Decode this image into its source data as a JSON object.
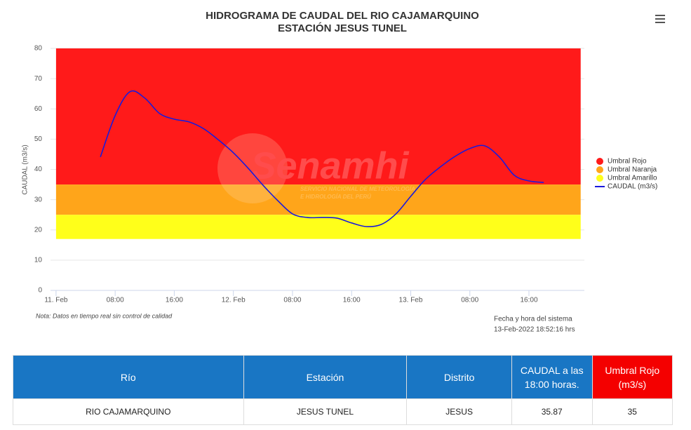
{
  "chart_data": {
    "type": "line",
    "title": "HIDROGRAMA DE CAUDAL DEL RIO CAJAMARQUINO",
    "subtitle": "ESTACIÓN JESUS TUNEL",
    "y_label": "CAUDAL (m3/s)",
    "watermark": [
      "Senamhi",
      "SERVICIO NACIONAL DE METEOROLOGÍA",
      "E HIDROLOGÍA DEL PERÚ"
    ],
    "note": "Nota: Datos en tiempo real sin control de calidad",
    "system_time": [
      "Fecha y hora del sistema",
      "13-Feb-2022 18:52:16 hrs"
    ],
    "xlim": [
      -0.75,
      71.5
    ],
    "ylim": [
      0,
      80
    ],
    "yticks": [
      0,
      10,
      20,
      30,
      40,
      50,
      60,
      70,
      80
    ],
    "xticks": [
      {
        "value": 0,
        "label": "11. Feb"
      },
      {
        "value": 8,
        "label": "08:00"
      },
      {
        "value": 16,
        "label": "16:00"
      },
      {
        "value": 24,
        "label": "12. Feb"
      },
      {
        "value": 32,
        "label": "08:00"
      },
      {
        "value": 40,
        "label": "16:00"
      },
      {
        "value": 48,
        "label": "13. Feb"
      },
      {
        "value": 56,
        "label": "08:00"
      },
      {
        "value": 64,
        "label": "16:00"
      }
    ],
    "grid": true,
    "legend": "right",
    "bands": [
      {
        "name": "Umbral Rojo",
        "color": "#ff1a1a",
        "low": 35,
        "high": 80,
        "x": [
          0,
          71
        ]
      },
      {
        "name": "Umbral Naranja",
        "color": "#ffa51a",
        "low": 25,
        "high": 35,
        "x": [
          0,
          71
        ]
      },
      {
        "name": "Umbral Amarillo",
        "color": "#ffff1a",
        "low": 17,
        "high": 25,
        "x": [
          0,
          71
        ]
      }
    ],
    "x": [
      6,
      8,
      10,
      12,
      14,
      16,
      18,
      20,
      22,
      24,
      26,
      28,
      30,
      32,
      34,
      36,
      38,
      40,
      42,
      44,
      46,
      48,
      50,
      52,
      54,
      56,
      58,
      60,
      62,
      64,
      66
    ],
    "series": [
      {
        "name": "CAUDAL (m3/s)",
        "color": "#1a1adb",
        "values": [
          44.1,
          57.8,
          65.7,
          63.6,
          58.5,
          56.6,
          55.7,
          53.4,
          49.7,
          45.5,
          40.4,
          34.8,
          29.7,
          25.3,
          24.1,
          24.1,
          23.9,
          22.3,
          21.1,
          21.8,
          25.3,
          31.1,
          36.7,
          40.8,
          44.3,
          46.9,
          47.8,
          44.1,
          38.1,
          36.2,
          35.7
        ]
      }
    ]
  },
  "table": {
    "headers": [
      "Río",
      "Estación",
      "Distrito",
      "CAUDAL a las 18:00 horas.",
      "Umbral Rojo (m3/s)"
    ],
    "rows": [
      [
        "RIO CAJAMARQUINO",
        "JESUS TUNEL",
        "JESUS",
        "35.87",
        "35"
      ]
    ]
  }
}
